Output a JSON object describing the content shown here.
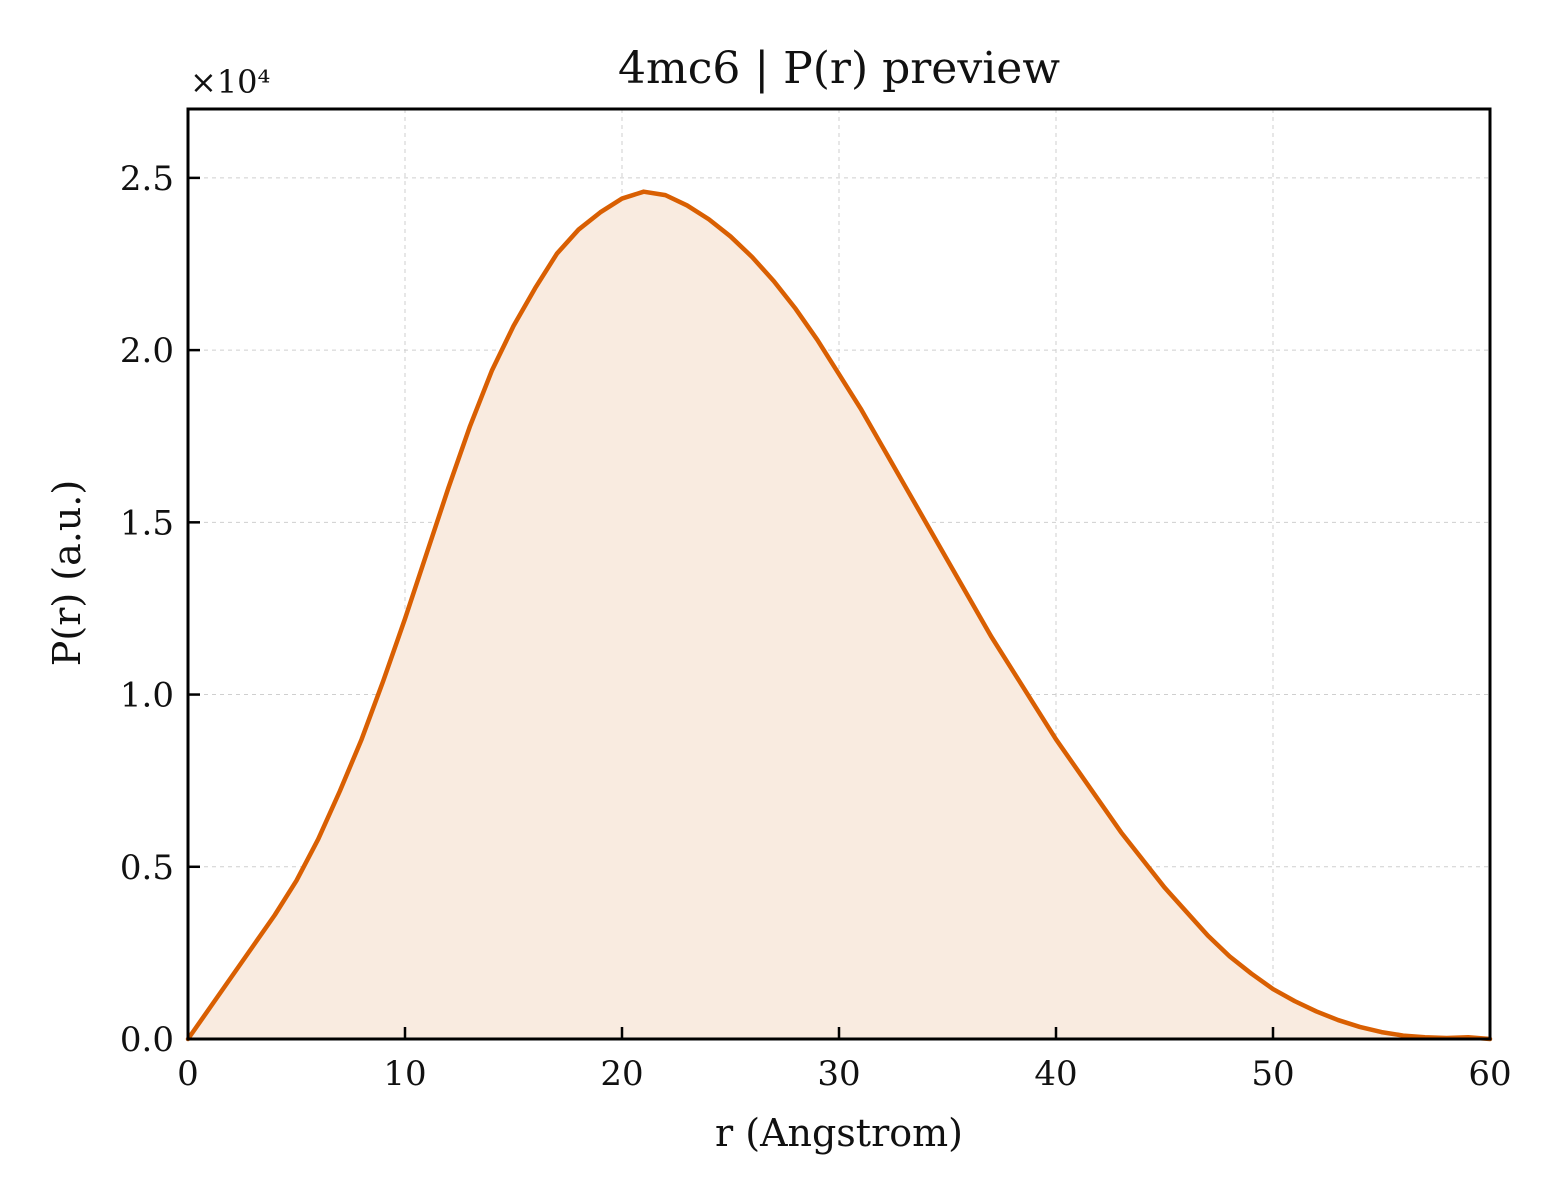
{
  "chart_data": {
    "type": "area",
    "title": "4mc6 | P(r) preview",
    "xlabel": "r (Angstrom)",
    "ylabel": "P(r) (a.u.)",
    "y_multiplier_label": "×10⁴",
    "xlim": [
      0,
      60
    ],
    "ylim": [
      0,
      2.7
    ],
    "xticks": [
      0,
      10,
      20,
      30,
      40,
      50,
      60
    ],
    "xtick_labels": [
      "0",
      "10",
      "20",
      "30",
      "40",
      "50",
      "60"
    ],
    "yticks": [
      0,
      0.5,
      1.0,
      1.5,
      2.0,
      2.5
    ],
    "ytick_labels": [
      "0.0",
      "0.5",
      "1.0",
      "1.5",
      "2.0",
      "2.5"
    ],
    "grid": true,
    "line_color": "#d95f02",
    "fill_color": "#f9ebe0",
    "series": [
      {
        "x": [
          0,
          1,
          2,
          3,
          4,
          5,
          6,
          7,
          8,
          9,
          10,
          11,
          12,
          13,
          14,
          15,
          16,
          17,
          18,
          19,
          20,
          21,
          22,
          23,
          24,
          25,
          26,
          27,
          28,
          29,
          30,
          31,
          32,
          33,
          34,
          35,
          36,
          37,
          38,
          39,
          40,
          41,
          42,
          43,
          44,
          45,
          46,
          47,
          48,
          49,
          50,
          51,
          52,
          53,
          54,
          55,
          56,
          57,
          58,
          59,
          60
        ],
        "y": [
          0.0,
          0.09,
          0.18,
          0.27,
          0.36,
          0.46,
          0.58,
          0.72,
          0.87,
          1.04,
          1.22,
          1.41,
          1.6,
          1.78,
          1.94,
          2.07,
          2.18,
          2.28,
          2.35,
          2.4,
          2.44,
          2.46,
          2.45,
          2.42,
          2.38,
          2.33,
          2.27,
          2.2,
          2.12,
          2.03,
          1.93,
          1.83,
          1.72,
          1.61,
          1.5,
          1.39,
          1.28,
          1.17,
          1.07,
          0.97,
          0.87,
          0.78,
          0.69,
          0.6,
          0.52,
          0.44,
          0.37,
          0.3,
          0.24,
          0.19,
          0.145,
          0.11,
          0.08,
          0.055,
          0.035,
          0.02,
          0.01,
          0.005,
          0.003,
          0.005,
          0.0
        ]
      }
    ]
  }
}
